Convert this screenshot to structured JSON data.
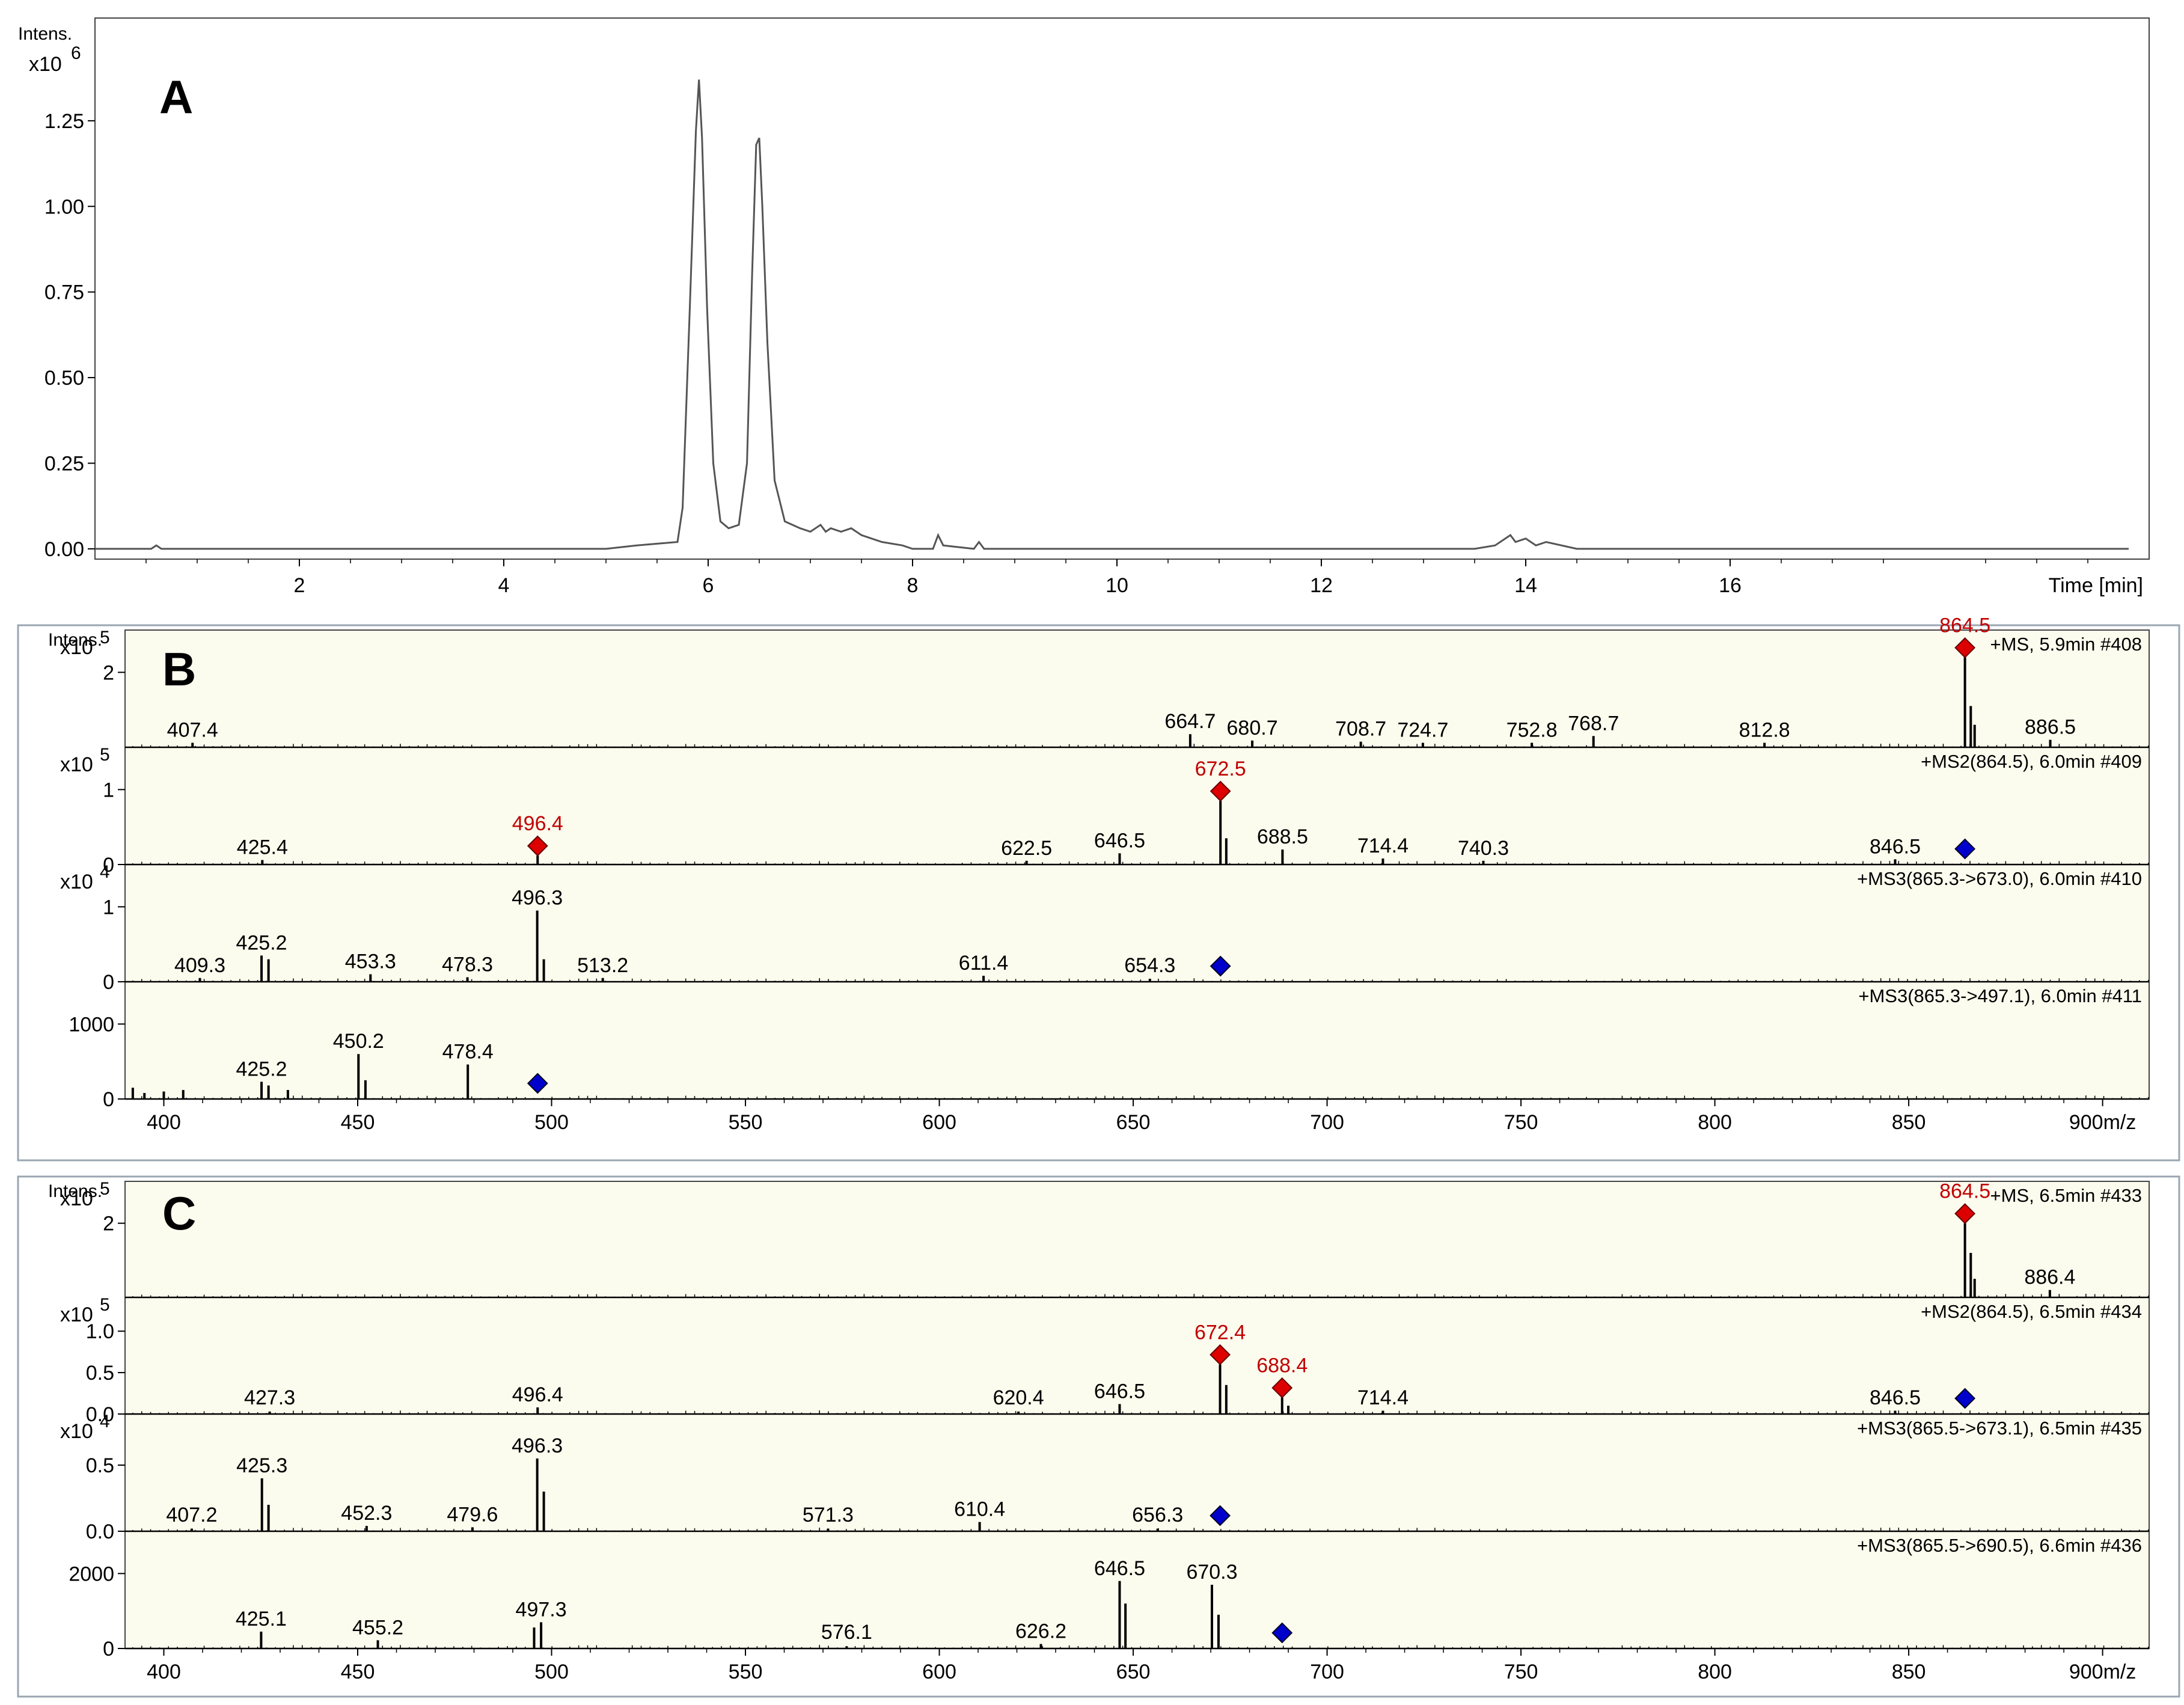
{
  "chart_data": [
    {
      "type": "line",
      "panel": "A",
      "ylabel": "Intens.",
      "yunit": "x10",
      "yexp": "6",
      "xlabel": "Time [min]",
      "xlim": [
        0,
        20.1
      ],
      "ylim": [
        -0.03,
        1.55
      ],
      "xticks": [
        "2",
        "4",
        "6",
        "8",
        "10",
        "12",
        "14",
        "16"
      ],
      "xtick_values": [
        2,
        4,
        6,
        8,
        10,
        12,
        14,
        16
      ],
      "yticks": [
        "0.00",
        "0.25",
        "0.50",
        "0.75",
        "1.00",
        "1.25"
      ],
      "ytick_values": [
        0,
        0.25,
        0.5,
        0.75,
        1.0,
        1.25
      ],
      "series": [
        {
          "x": [
            0.0,
            0.55,
            0.6,
            0.65,
            1.5,
            2.0,
            3.0,
            4.0,
            5.0,
            5.3,
            5.7,
            5.75,
            5.82,
            5.88,
            5.91,
            5.94,
            5.99,
            6.05,
            6.12,
            6.2,
            6.3,
            6.38,
            6.43,
            6.47,
            6.5,
            6.53,
            6.58,
            6.65,
            6.75,
            6.9,
            7.0,
            7.1,
            7.15,
            7.2,
            7.3,
            7.4,
            7.5,
            7.7,
            7.9,
            8.0,
            8.2,
            8.25,
            8.3,
            8.6,
            8.65,
            8.7,
            9.0,
            10.0,
            12.0,
            13.0,
            13.5,
            13.7,
            13.85,
            13.9,
            14.0,
            14.1,
            14.2,
            14.5,
            15.0,
            16.0,
            18.0,
            19.9
          ],
          "y": [
            0.0,
            0.0,
            0.01,
            0.0,
            0.0,
            0.0,
            0.0,
            0.0,
            0.0,
            0.01,
            0.02,
            0.12,
            0.7,
            1.22,
            1.37,
            1.2,
            0.7,
            0.25,
            0.08,
            0.06,
            0.07,
            0.25,
            0.8,
            1.18,
            1.2,
            1.0,
            0.6,
            0.2,
            0.08,
            0.06,
            0.05,
            0.07,
            0.05,
            0.06,
            0.05,
            0.06,
            0.04,
            0.02,
            0.01,
            0.0,
            0.0,
            0.04,
            0.01,
            0.0,
            0.02,
            0.0,
            0.0,
            0.0,
            0.0,
            0.0,
            0.0,
            0.01,
            0.04,
            0.02,
            0.03,
            0.01,
            0.02,
            0.0,
            0.0,
            0.0,
            0.0,
            0.0
          ]
        }
      ]
    },
    {
      "type": "bar",
      "panel": "B",
      "ylabel": "Intens.",
      "xunit": "m/z",
      "xlim": [
        390,
        912
      ],
      "xticks": [
        "400",
        "450",
        "500",
        "550",
        "600",
        "650",
        "700",
        "750",
        "800",
        "850",
        "900m/z"
      ],
      "xtick_values": [
        400,
        450,
        500,
        550,
        600,
        650,
        700,
        750,
        800,
        850,
        900
      ],
      "spectra": [
        {
          "title": "+MS, 5.9min #408",
          "yunit": "x10",
          "yexp": "5",
          "ymax": 3.0,
          "yticks": [
            "2"
          ],
          "ytick_values": [
            2
          ],
          "peaks": [
            [
              407.4,
              0.12
            ],
            [
              664.7,
              0.35
            ],
            [
              680.7,
              0.18
            ],
            [
              708.7,
              0.15
            ],
            [
              724.7,
              0.12
            ],
            [
              752.8,
              0.12
            ],
            [
              768.7,
              0.3
            ],
            [
              812.8,
              0.12
            ],
            [
              864.5,
              2.4
            ],
            [
              866.0,
              1.1
            ],
            [
              867.0,
              0.6
            ],
            [
              886.5,
              0.2
            ]
          ],
          "labels": [
            {
              "mz": 407.4,
              "text": "407.4"
            },
            {
              "mz": 664.7,
              "text": "664.7"
            },
            {
              "mz": 680.7,
              "text": "680.7"
            },
            {
              "mz": 708.7,
              "text": "708.7"
            },
            {
              "mz": 724.7,
              "text": "724.7"
            },
            {
              "mz": 752.8,
              "text": "752.8"
            },
            {
              "mz": 768.7,
              "text": "768.7"
            },
            {
              "mz": 812.8,
              "text": "812.8"
            },
            {
              "mz": 886.5,
              "text": "886.5"
            }
          ],
          "precursors": [
            {
              "mz": 864.5,
              "text": "864.5",
              "color": "red"
            }
          ]
        },
        {
          "title": "+MS2(864.5), 6.0min #409",
          "yunit": "x10",
          "yexp": "5",
          "ymax": 1.5,
          "yticks": [
            "0",
            "1"
          ],
          "ytick_values": [
            0,
            1
          ],
          "peaks": [
            [
              425.4,
              0.06
            ],
            [
              496.4,
              0.12
            ],
            [
              622.5,
              0.05
            ],
            [
              646.5,
              0.15
            ],
            [
              672.5,
              0.85
            ],
            [
              674.0,
              0.35
            ],
            [
              688.5,
              0.2
            ],
            [
              714.4,
              0.08
            ],
            [
              740.3,
              0.05
            ],
            [
              846.5,
              0.07
            ]
          ],
          "labels": [
            {
              "mz": 425.4,
              "text": "425.4"
            },
            {
              "mz": 622.5,
              "text": "622.5"
            },
            {
              "mz": 646.5,
              "text": "646.5"
            },
            {
              "mz": 688.5,
              "text": "688.5"
            },
            {
              "mz": 714.4,
              "text": "714.4"
            },
            {
              "mz": 740.3,
              "text": "740.3"
            },
            {
              "mz": 846.5,
              "text": "846.5"
            }
          ],
          "precursors": [
            {
              "mz": 496.4,
              "text": "496.4",
              "color": "red"
            },
            {
              "mz": 672.5,
              "text": "672.5",
              "color": "red"
            }
          ],
          "parent_marker": {
            "mz": 864.5,
            "color": "blue"
          }
        },
        {
          "title": "+MS3(865.3->673.0), 6.0min #410",
          "yunit": "x10",
          "yexp": "4",
          "ymax": 1.5,
          "yticks": [
            "0",
            "1"
          ],
          "ytick_values": [
            0,
            1
          ],
          "peaks": [
            [
              409.3,
              0.05
            ],
            [
              425.2,
              0.35
            ],
            [
              427.0,
              0.3
            ],
            [
              453.3,
              0.1
            ],
            [
              478.3,
              0.06
            ],
            [
              496.3,
              0.95
            ],
            [
              498.0,
              0.3
            ],
            [
              513.2,
              0.05
            ],
            [
              611.4,
              0.08
            ],
            [
              654.3,
              0.04
            ]
          ],
          "labels": [
            {
              "mz": 409.3,
              "text": "409.3"
            },
            {
              "mz": 425.2,
              "text": "425.2"
            },
            {
              "mz": 453.3,
              "text": "453.3"
            },
            {
              "mz": 478.3,
              "text": "478.3"
            },
            {
              "mz": 496.3,
              "text": "496.3"
            },
            {
              "mz": 513.2,
              "text": "513.2"
            },
            {
              "mz": 611.4,
              "text": "611.4"
            },
            {
              "mz": 654.3,
              "text": "654.3"
            }
          ],
          "parent_marker": {
            "mz": 672.5,
            "color": "blue"
          }
        },
        {
          "title": "+MS3(865.3->497.1), 6.0min #411",
          "yunit": "",
          "yexp": "",
          "ymax": 1500,
          "yticks": [
            "0",
            "1000"
          ],
          "ytick_values": [
            0,
            1000
          ],
          "peaks": [
            [
              392.0,
              150
            ],
            [
              395.0,
              80
            ],
            [
              400.0,
              100
            ],
            [
              405.0,
              120
            ],
            [
              425.2,
              230
            ],
            [
              427.0,
              180
            ],
            [
              432.0,
              120
            ],
            [
              450.2,
              600
            ],
            [
              452.0,
              250
            ],
            [
              478.4,
              460
            ]
          ],
          "labels": [
            {
              "mz": 425.2,
              "text": "425.2"
            },
            {
              "mz": 450.2,
              "text": "450.2"
            },
            {
              "mz": 478.4,
              "text": "478.4"
            }
          ],
          "parent_marker": {
            "mz": 496.4,
            "color": "blue"
          }
        }
      ]
    },
    {
      "type": "bar",
      "panel": "C",
      "ylabel": "Intens.",
      "xunit": "m/z",
      "xlim": [
        390,
        912
      ],
      "xticks": [
        "400",
        "450",
        "500",
        "550",
        "600",
        "650",
        "700",
        "750",
        "800",
        "850",
        "900m/z"
      ],
      "xtick_values": [
        400,
        450,
        500,
        550,
        600,
        650,
        700,
        750,
        800,
        850,
        900
      ],
      "spectra": [
        {
          "title": "+MS, 6.5min #433",
          "yunit": "x10",
          "yexp": "5",
          "ymax": 3.0,
          "yticks": [
            "2"
          ],
          "ytick_values": [
            2
          ],
          "peaks": [
            [
              864.5,
              2.0
            ],
            [
              866.0,
              1.2
            ],
            [
              867.0,
              0.5
            ],
            [
              886.4,
              0.2
            ]
          ],
          "labels": [
            {
              "mz": 886.4,
              "text": "886.4"
            }
          ],
          "precursors": [
            {
              "mz": 864.5,
              "text": "864.5",
              "color": "red"
            }
          ]
        },
        {
          "title": "+MS2(864.5), 6.5min #434",
          "yunit": "x10",
          "yexp": "5",
          "ymax": 1.35,
          "yticks": [
            "0.0",
            "0.5",
            "1.0"
          ],
          "ytick_values": [
            0,
            0.5,
            1.0
          ],
          "peaks": [
            [
              427.3,
              0.03
            ],
            [
              496.4,
              0.08
            ],
            [
              620.4,
              0.03
            ],
            [
              646.5,
              0.12
            ],
            [
              672.4,
              0.6
            ],
            [
              674.0,
              0.35
            ],
            [
              688.4,
              0.2
            ],
            [
              690.0,
              0.1
            ],
            [
              714.4,
              0.04
            ],
            [
              846.5,
              0.04
            ]
          ],
          "labels": [
            {
              "mz": 427.3,
              "text": "427.3"
            },
            {
              "mz": 496.4,
              "text": "496.4"
            },
            {
              "mz": 620.4,
              "text": "620.4"
            },
            {
              "mz": 646.5,
              "text": "646.5"
            },
            {
              "mz": 714.4,
              "text": "714.4"
            },
            {
              "mz": 846.5,
              "text": "846.5"
            }
          ],
          "precursors": [
            {
              "mz": 672.4,
              "text": "672.4",
              "color": "red"
            },
            {
              "mz": 688.4,
              "text": "688.4",
              "color": "red"
            }
          ],
          "parent_marker": {
            "mz": 864.5,
            "color": "blue"
          }
        },
        {
          "title": "+MS3(865.5->673.1), 6.5min #435",
          "yunit": "x10",
          "yexp": "4",
          "ymax": 0.85,
          "yticks": [
            "0.0",
            "0.5"
          ],
          "ytick_values": [
            0,
            0.5
          ],
          "peaks": [
            [
              407.2,
              0.02
            ],
            [
              425.3,
              0.4
            ],
            [
              427.0,
              0.2
            ],
            [
              452.3,
              0.04
            ],
            [
              479.6,
              0.03
            ],
            [
              496.3,
              0.55
            ],
            [
              498.0,
              0.3
            ],
            [
              571.3,
              0.02
            ],
            [
              610.4,
              0.07
            ],
            [
              656.3,
              0.02
            ]
          ],
          "labels": [
            {
              "mz": 407.2,
              "text": "407.2"
            },
            {
              "mz": 425.3,
              "text": "425.3"
            },
            {
              "mz": 452.3,
              "text": "452.3"
            },
            {
              "mz": 479.6,
              "text": "479.6"
            },
            {
              "mz": 496.3,
              "text": "496.3"
            },
            {
              "mz": 571.3,
              "text": "571.3"
            },
            {
              "mz": 610.4,
              "text": "610.4"
            },
            {
              "mz": 656.3,
              "text": "656.3"
            }
          ],
          "parent_marker": {
            "mz": 672.4,
            "color": "blue"
          }
        },
        {
          "title": "+MS3(865.5->690.5), 6.6min #436",
          "yunit": "",
          "yexp": "",
          "ymax": 3000,
          "yticks": [
            "0",
            "2000"
          ],
          "ytick_values": [
            0,
            2000
          ],
          "peaks": [
            [
              425.1,
              450
            ],
            [
              455.2,
              220
            ],
            [
              495.5,
              560
            ],
            [
              497.3,
              700
            ],
            [
              576.1,
              60
            ],
            [
              626.2,
              120
            ],
            [
              646.5,
              1800
            ],
            [
              648.0,
              1200
            ],
            [
              670.3,
              1700
            ],
            [
              672.0,
              900
            ]
          ],
          "labels": [
            {
              "mz": 425.1,
              "text": "425.1"
            },
            {
              "mz": 455.2,
              "text": "455.2"
            },
            {
              "mz": 497.3,
              "text": "497.3"
            },
            {
              "mz": 576.1,
              "text": "576.1"
            },
            {
              "mz": 626.2,
              "text": "626.2"
            },
            {
              "mz": 646.5,
              "text": "646.5"
            },
            {
              "mz": 670.3,
              "text": "670.3"
            }
          ],
          "parent_marker": {
            "mz": 688.4,
            "color": "blue"
          }
        }
      ]
    }
  ],
  "colors": {
    "trace": "#555555",
    "spectrum_bg": "#fbfbee",
    "precursor_red": "#dd0000",
    "marker_blue": "#0000cc",
    "panel_border": "#9aa6b2"
  }
}
